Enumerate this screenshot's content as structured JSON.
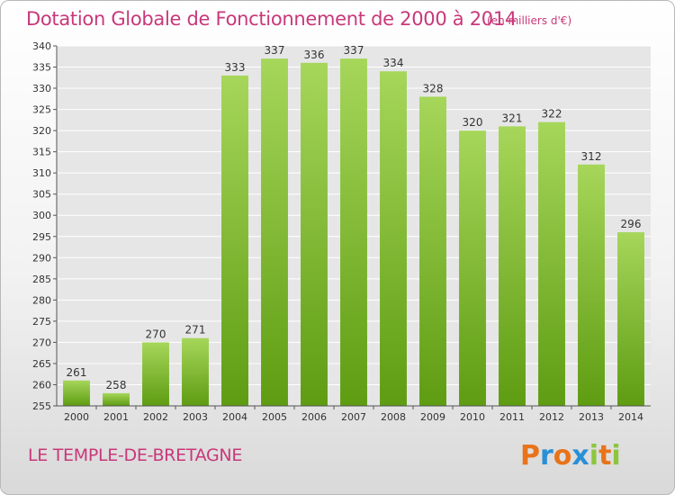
{
  "title": "Dotation Globale de Fonctionnement de 2000 à 2014",
  "unit": "(en milliers d'€)",
  "city": "LE TEMPLE-DE-BRETAGNE",
  "logo": {
    "letters": [
      "P",
      "r",
      "o",
      "x",
      "i",
      "t",
      "i"
    ],
    "colors": [
      "#e8731a",
      "#2a8fd6",
      "#e8731a",
      "#2a8fd6",
      "#8cc63f",
      "#e8731a",
      "#8cc63f"
    ]
  },
  "colors": {
    "bar_top": "#a6d65a",
    "bar_bottom": "#5e9c12",
    "title": "#c8387a",
    "grid": "#ffffff"
  },
  "chart_data": {
    "type": "bar",
    "title": "Dotation Globale de Fonctionnement de 2000 à 2014",
    "categories": [
      "2000",
      "2001",
      "2002",
      "2003",
      "2004",
      "2005",
      "2006",
      "2007",
      "2008",
      "2009",
      "2010",
      "2011",
      "2012",
      "2013",
      "2014"
    ],
    "values": [
      261,
      258,
      270,
      271,
      333,
      337,
      336,
      337,
      334,
      328,
      320,
      321,
      322,
      312,
      296
    ],
    "ylim": [
      255,
      340
    ],
    "ytick_step": 5,
    "grid": true,
    "legend": "none"
  }
}
